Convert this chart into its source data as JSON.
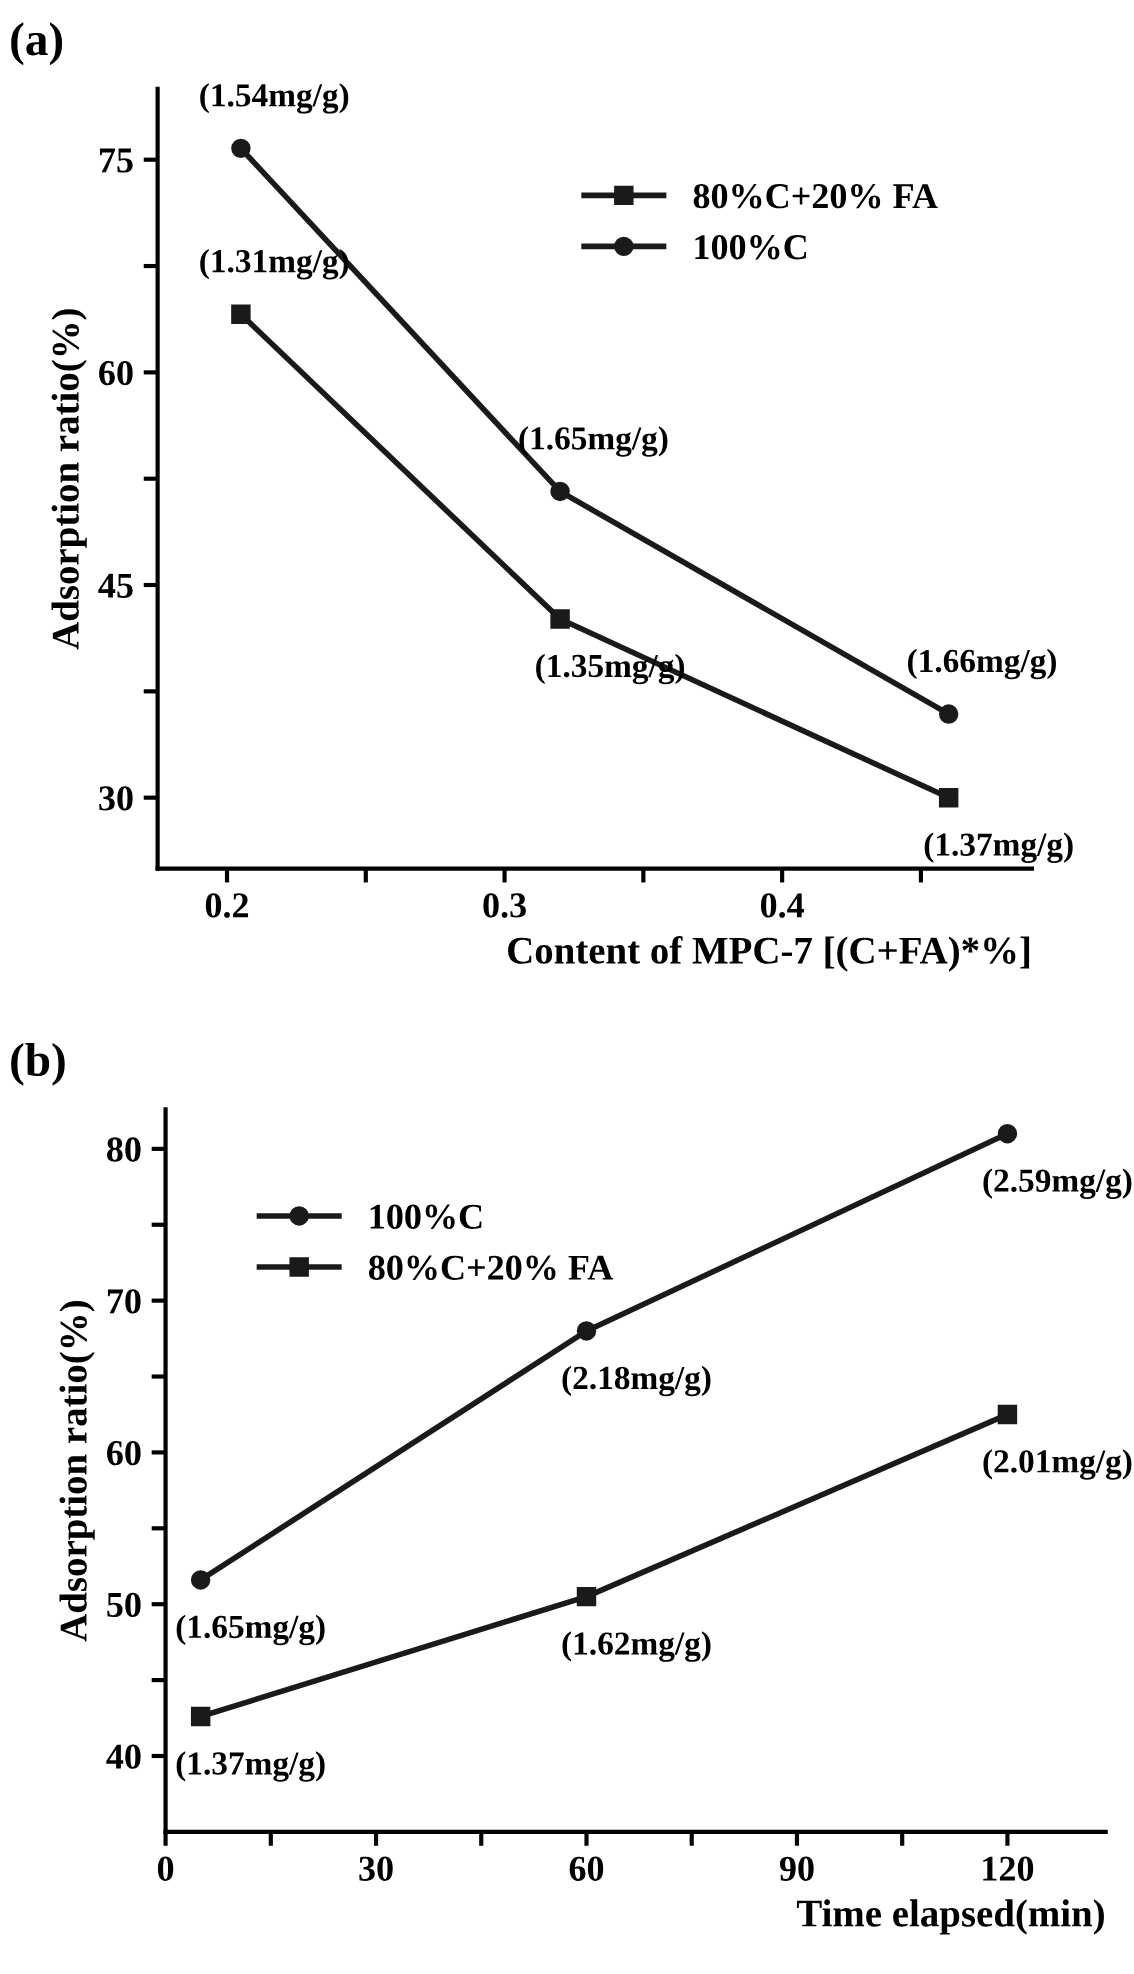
{
  "chart_data": [
    {
      "type": "line",
      "title": "(a)",
      "xlabel": "Content of MPC-7 [(C+FA)*%]",
      "ylabel": "Adsorption ratio(%)",
      "x": [
        0.205,
        0.32,
        0.46
      ],
      "series": [
        {
          "name": "80%C+20% FA",
          "color": "#1a1a1a",
          "marker": "square",
          "values": [
            64.1,
            42.6,
            30.0
          ]
        },
        {
          "name": "100%C",
          "color": "#1a1a1a",
          "marker": "circle",
          "values": [
            75.8,
            51.6,
            35.9
          ]
        }
      ],
      "annotations": [
        {
          "text": "(1.31mg/g)",
          "x": 0.205,
          "y": 64.1
        },
        {
          "text": "(1.35mg/g)",
          "x": 0.32,
          "y": 42.6
        },
        {
          "text": "(1.37mg/g)",
          "x": 0.46,
          "y": 30.0
        },
        {
          "text": "(1.54mg/g)",
          "x": 0.205,
          "y": 75.8
        },
        {
          "text": "(1.65mg/g)",
          "x": 0.32,
          "y": 51.6
        },
        {
          "text": "(1.66mg/g)",
          "x": 0.46,
          "y": 35.9
        }
      ],
      "xlim": [
        0.175,
        0.49
      ],
      "ylim": [
        25,
        80
      ],
      "xticks": [
        0.2,
        {
          "value": 0.25,
          "label": null
        },
        0.3,
        {
          "value": 0.35,
          "label": null
        },
        0.4,
        {
          "value": 0.45,
          "label": null
        }
      ],
      "yticks": [
        30,
        {
          "value": 37.5,
          "label": null
        },
        45,
        {
          "value": 52.5,
          "label": null
        },
        60,
        {
          "value": 67.5,
          "label": null
        },
        75
      ],
      "legend": "top right",
      "grid": false,
      "line_style": "solid"
    },
    {
      "type": "line",
      "title": "(b)",
      "xlabel": "Time elapsed(min)",
      "ylabel": "Adsorption ratio(%)",
      "x": [
        5,
        60,
        120
      ],
      "series": [
        {
          "name": "100%C",
          "color": "#1a1a1a",
          "marker": "circle",
          "values": [
            51.6,
            68.0,
            81.0
          ]
        },
        {
          "name": "80%C+20% FA",
          "color": "#1a1a1a",
          "marker": "square",
          "values": [
            42.6,
            50.5,
            62.5
          ]
        }
      ],
      "annotations": [
        {
          "text": "(1.65mg/g)",
          "x": 5,
          "y": 51.6
        },
        {
          "text": "(2.18mg/g)",
          "x": 60,
          "y": 68.0
        },
        {
          "text": "(2.59mg/g)",
          "x": 120,
          "y": 81.0
        },
        {
          "text": "(1.37mg/g)",
          "x": 5,
          "y": 42.6
        },
        {
          "text": "(1.62mg/g)",
          "x": 60,
          "y": 50.5
        },
        {
          "text": "(2.01mg/g)",
          "x": 120,
          "y": 62.5
        }
      ],
      "xlim": [
        0,
        134
      ],
      "ylim": [
        35,
        82.6
      ],
      "xticks": [
        0,
        {
          "value": 15,
          "label": null
        },
        30,
        {
          "value": 45,
          "label": null
        },
        60,
        {
          "value": 75,
          "label": null
        },
        90,
        {
          "value": 105,
          "label": null
        },
        120
      ],
      "yticks": [
        40,
        {
          "value": 45,
          "label": null
        },
        50,
        {
          "value": 55,
          "label": null
        },
        60,
        {
          "value": 65,
          "label": null
        },
        70,
        {
          "value": 75,
          "label": null
        },
        80
      ],
      "legend": "top left",
      "grid": false,
      "line_style": "solid"
    }
  ]
}
